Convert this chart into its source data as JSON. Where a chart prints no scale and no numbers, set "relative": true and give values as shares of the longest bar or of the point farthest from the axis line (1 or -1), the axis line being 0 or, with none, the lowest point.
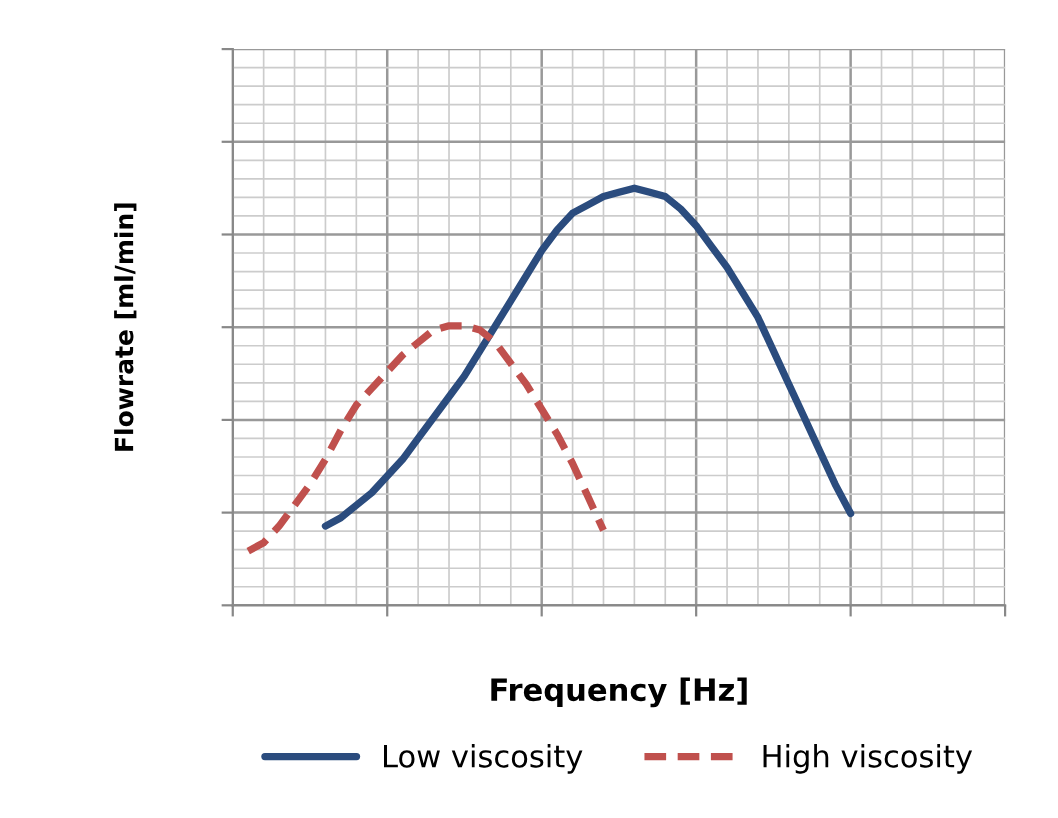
{
  "chart_data": {
    "type": "line",
    "relative": true,
    "xlabel": "Frequency [Hz]",
    "ylabel": "Flowrate [ml/min]",
    "categories": [
      null,
      null,
      null,
      null,
      null,
      null,
      null,
      null,
      null,
      null,
      null,
      null,
      null,
      null,
      null,
      null,
      null,
      null,
      null,
      null,
      null,
      null,
      null,
      null,
      null,
      null,
      null,
      null,
      null,
      null,
      null,
      null,
      null,
      null,
      null,
      null,
      null,
      null,
      null,
      null,
      null,
      null,
      null,
      null,
      null,
      null,
      null,
      null,
      null,
      null,
      null
    ],
    "series": [
      {
        "name": "Low viscosity",
        "color": "#2b4c7e",
        "line_style": "solid",
        "values": [
          null,
          null,
          null,
          null,
          null,
          null,
          0.19,
          0.21,
          0.24,
          0.27,
          0.31,
          0.35,
          0.4,
          0.45,
          0.5,
          0.55,
          0.61,
          0.67,
          0.73,
          0.79,
          0.85,
          0.9,
          0.94,
          0.96,
          0.98,
          0.99,
          1.0,
          0.99,
          0.98,
          0.95,
          0.91,
          0.86,
          0.81,
          0.75,
          0.69,
          0.61,
          0.53,
          0.45,
          0.37,
          0.29,
          0.22,
          null,
          null,
          null,
          null,
          null,
          null,
          null,
          null,
          null,
          null
        ]
      },
      {
        "name": "High viscosity",
        "color": "#c0504d",
        "line_style": "dashed",
        "values": [
          null,
          0.13,
          0.15,
          0.19,
          0.24,
          0.29,
          0.35,
          0.42,
          0.48,
          0.52,
          0.56,
          0.6,
          0.63,
          0.66,
          0.67,
          0.67,
          0.66,
          0.63,
          0.58,
          0.53,
          0.47,
          0.41,
          0.34,
          0.26,
          0.18,
          null,
          null,
          null,
          null,
          null,
          null,
          null,
          null,
          null,
          null,
          null,
          null,
          null,
          null,
          null,
          null,
          null,
          null,
          null,
          null,
          null,
          null,
          null,
          null,
          null,
          null
        ]
      }
    ],
    "grid": true,
    "legend": "bottom",
    "tick_labels": false
  }
}
